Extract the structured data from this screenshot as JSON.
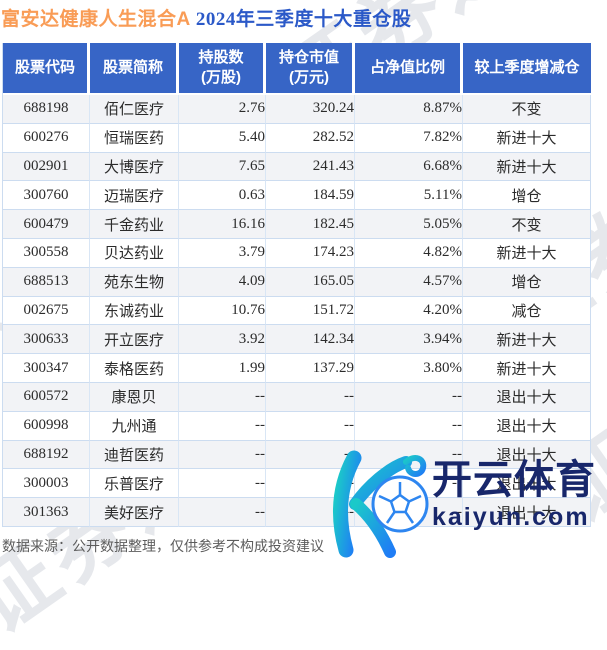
{
  "title": {
    "fund": "富安达健康人生混合A",
    "period": "2024年三季度十大重仓股"
  },
  "colors": {
    "header_bg": "#3765c6",
    "title_orange": "#f99c56",
    "title_blue": "#2b59c8",
    "increase_red": "#f32222",
    "decrease_green": "#2aa35d",
    "dimmed_gray": "#a3a3a3"
  },
  "chart_data": {
    "type": "table",
    "title": "富安达健康人生混合A 2024年三季度十大重仓股",
    "columns": [
      {
        "label": "股票代码",
        "sub": ""
      },
      {
        "label": "股票简称",
        "sub": ""
      },
      {
        "label": "持股数",
        "sub": "(万股)"
      },
      {
        "label": "持仓市值",
        "sub": "(万元)"
      },
      {
        "label": "占净值比例",
        "sub": ""
      },
      {
        "label": "较上季度增减仓",
        "sub": ""
      }
    ],
    "rows": [
      {
        "code": "688198",
        "name": "佰仁医疗",
        "shares": "2.76",
        "value": "320.24",
        "ratio": "8.87%",
        "change": "不变",
        "change_style": "neutral",
        "dimmed": false
      },
      {
        "code": "600276",
        "name": "恒瑞医药",
        "shares": "5.40",
        "value": "282.52",
        "ratio": "7.82%",
        "change": "新进十大",
        "change_style": "red",
        "dimmed": false
      },
      {
        "code": "002901",
        "name": "大博医疗",
        "shares": "7.65",
        "value": "241.43",
        "ratio": "6.68%",
        "change": "新进十大",
        "change_style": "red",
        "dimmed": false
      },
      {
        "code": "300760",
        "name": "迈瑞医疗",
        "shares": "0.63",
        "value": "184.59",
        "ratio": "5.11%",
        "change": "增仓",
        "change_style": "red",
        "dimmed": false
      },
      {
        "code": "600479",
        "name": "千金药业",
        "shares": "16.16",
        "value": "182.45",
        "ratio": "5.05%",
        "change": "不变",
        "change_style": "neutral",
        "dimmed": false
      },
      {
        "code": "300558",
        "name": "贝达药业",
        "shares": "3.79",
        "value": "174.23",
        "ratio": "4.82%",
        "change": "新进十大",
        "change_style": "red",
        "dimmed": false
      },
      {
        "code": "688513",
        "name": "苑东生物",
        "shares": "4.09",
        "value": "165.05",
        "ratio": "4.57%",
        "change": "增仓",
        "change_style": "red",
        "dimmed": false
      },
      {
        "code": "002675",
        "name": "东诚药业",
        "shares": "10.76",
        "value": "151.72",
        "ratio": "4.20%",
        "change": "减仓",
        "change_style": "green",
        "dimmed": false
      },
      {
        "code": "300633",
        "name": "开立医疗",
        "shares": "3.92",
        "value": "142.34",
        "ratio": "3.94%",
        "change": "新进十大",
        "change_style": "red",
        "dimmed": false
      },
      {
        "code": "300347",
        "name": "泰格医药",
        "shares": "1.99",
        "value": "137.29",
        "ratio": "3.80%",
        "change": "新进十大",
        "change_style": "red",
        "dimmed": false
      },
      {
        "code": "600572",
        "name": "康恩贝",
        "shares": "--",
        "value": "--",
        "ratio": "--",
        "change": "退出十大",
        "change_style": "green",
        "dimmed": true
      },
      {
        "code": "600998",
        "name": "九州通",
        "shares": "--",
        "value": "--",
        "ratio": "--",
        "change": "退出十大",
        "change_style": "green",
        "dimmed": true
      },
      {
        "code": "688192",
        "name": "迪哲医药",
        "shares": "--",
        "value": "--",
        "ratio": "--",
        "change": "退出十大",
        "change_style": "green",
        "dimmed": true
      },
      {
        "code": "300003",
        "name": "乐普医疗",
        "shares": "--",
        "value": "--",
        "ratio": "--",
        "change": "退出十大",
        "change_style": "green",
        "dimmed": true
      },
      {
        "code": "301363",
        "name": "美好医疗",
        "shares": "--",
        "value": "--",
        "ratio": "--",
        "change": "退出十大",
        "change_style": "green",
        "dimmed": true
      }
    ]
  },
  "watermark": {
    "text": "证券之星",
    "logo": {
      "brand": "开云体育",
      "domain": "kaiyun.com",
      "icon": "kaiyun-k-soccer-logo"
    }
  },
  "footer": {
    "note": "数据来源：公开数据整理，仅供参考不构成投资建议"
  }
}
